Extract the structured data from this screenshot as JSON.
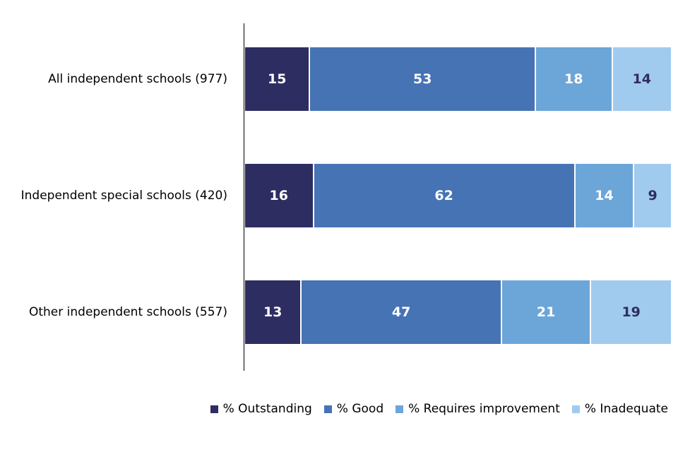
{
  "colors": {
    "background": "#ffffff",
    "axis": "#000000",
    "category_text": "#000000",
    "legend_text": "#000000",
    "divider": "#ffffff"
  },
  "chart_data": {
    "type": "bar",
    "orientation": "horizontal",
    "stacked": true,
    "grid": false,
    "xlim": [
      0,
      100
    ],
    "unit": "%",
    "value_labels": "inside",
    "legend_position": "bottom-right",
    "categories": [
      "All independent schools (977)",
      "Independent special schools (420)",
      "Other independent schools (557)"
    ],
    "series": [
      {
        "name": "% Outstanding",
        "color": "#2E2D62",
        "label_color": "#FFFFFF",
        "values": [
          15,
          16,
          13
        ]
      },
      {
        "name": "% Good",
        "color": "#4673B4",
        "label_color": "#FFFFFF",
        "values": [
          53,
          62,
          47
        ]
      },
      {
        "name": "% Requires improvement",
        "color": "#6CA6D9",
        "label_color": "#FFFFFF",
        "values": [
          18,
          14,
          21
        ]
      },
      {
        "name": "% Inadequate",
        "color": "#A0CBEE",
        "label_color": "#2E2D62",
        "values": [
          14,
          9,
          19
        ]
      }
    ]
  }
}
